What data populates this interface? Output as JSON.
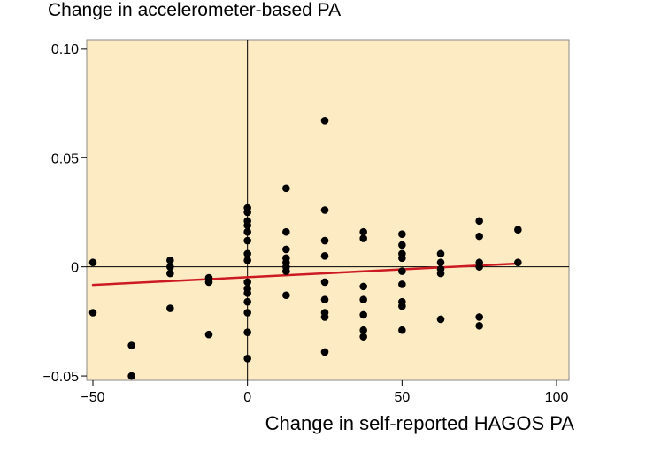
{
  "chart_data": {
    "type": "scatter",
    "title": "",
    "xlabel": "Change in self-reported HAGOS PA",
    "ylabel": "Change in accelerometer-based PA",
    "xlim": [
      -52,
      104
    ],
    "ylim": [
      -0.052,
      0.104
    ],
    "x_ticks": [
      -50,
      0,
      50,
      100
    ],
    "x_tick_labels": [
      "−50",
      "0",
      "50",
      "100"
    ],
    "y_ticks": [
      -0.05,
      0,
      0.05,
      0.1
    ],
    "y_tick_labels": [
      "−0.05",
      "0",
      "0.05",
      "0.10"
    ],
    "grid": false,
    "reference_lines": {
      "x": 0,
      "y": 0
    },
    "background_color": "#fdebc3",
    "point_color": "#000000",
    "fit_line": {
      "color": "#cc1a22",
      "x": [
        -50,
        87.5
      ],
      "y": [
        -0.0083,
        0.0015
      ]
    },
    "points": [
      {
        "x": -50,
        "y": 0.002
      },
      {
        "x": -50,
        "y": -0.021
      },
      {
        "x": -37.5,
        "y": -0.036
      },
      {
        "x": -37.5,
        "y": -0.05
      },
      {
        "x": -25,
        "y": 0.003
      },
      {
        "x": -25,
        "y": 0.0
      },
      {
        "x": -25,
        "y": -0.003
      },
      {
        "x": -25,
        "y": -0.019
      },
      {
        "x": -12.5,
        "y": -0.005
      },
      {
        "x": -12.5,
        "y": -0.007
      },
      {
        "x": -12.5,
        "y": -0.031
      },
      {
        "x": 0,
        "y": 0.027
      },
      {
        "x": 0,
        "y": 0.025
      },
      {
        "x": 0,
        "y": 0.021
      },
      {
        "x": 0,
        "y": 0.019
      },
      {
        "x": 0,
        "y": 0.016
      },
      {
        "x": 0,
        "y": 0.012
      },
      {
        "x": 0,
        "y": 0.006
      },
      {
        "x": 0,
        "y": 0.003
      },
      {
        "x": 0,
        "y": -0.007
      },
      {
        "x": 0,
        "y": -0.01
      },
      {
        "x": 0,
        "y": -0.012
      },
      {
        "x": 0,
        "y": -0.016
      },
      {
        "x": 0,
        "y": -0.021
      },
      {
        "x": 0,
        "y": -0.03
      },
      {
        "x": 0,
        "y": -0.042
      },
      {
        "x": 12.5,
        "y": 0.036
      },
      {
        "x": 12.5,
        "y": 0.016
      },
      {
        "x": 12.5,
        "y": 0.008
      },
      {
        "x": 12.5,
        "y": 0.004
      },
      {
        "x": 12.5,
        "y": 0.002
      },
      {
        "x": 12.5,
        "y": 0.0
      },
      {
        "x": 12.5,
        "y": -0.002
      },
      {
        "x": 12.5,
        "y": -0.013
      },
      {
        "x": 25,
        "y": 0.067
      },
      {
        "x": 25,
        "y": 0.026
      },
      {
        "x": 25,
        "y": 0.012
      },
      {
        "x": 25,
        "y": 0.005
      },
      {
        "x": 25,
        "y": -0.007
      },
      {
        "x": 25,
        "y": -0.015
      },
      {
        "x": 25,
        "y": -0.021
      },
      {
        "x": 25,
        "y": -0.023
      },
      {
        "x": 25,
        "y": -0.039
      },
      {
        "x": 37.5,
        "y": 0.016
      },
      {
        "x": 37.5,
        "y": 0.013
      },
      {
        "x": 37.5,
        "y": -0.009
      },
      {
        "x": 37.5,
        "y": -0.015
      },
      {
        "x": 37.5,
        "y": -0.022
      },
      {
        "x": 37.5,
        "y": -0.029
      },
      {
        "x": 37.5,
        "y": -0.032
      },
      {
        "x": 50,
        "y": 0.015
      },
      {
        "x": 50,
        "y": 0.01
      },
      {
        "x": 50,
        "y": 0.006
      },
      {
        "x": 50,
        "y": 0.004
      },
      {
        "x": 50,
        "y": -0.002
      },
      {
        "x": 50,
        "y": -0.008
      },
      {
        "x": 50,
        "y": -0.016
      },
      {
        "x": 50,
        "y": -0.018
      },
      {
        "x": 50,
        "y": -0.029
      },
      {
        "x": 62.5,
        "y": 0.006
      },
      {
        "x": 62.5,
        "y": 0.002
      },
      {
        "x": 62.5,
        "y": -0.001
      },
      {
        "x": 62.5,
        "y": -0.003
      },
      {
        "x": 62.5,
        "y": -0.024
      },
      {
        "x": 75,
        "y": 0.021
      },
      {
        "x": 75,
        "y": 0.014
      },
      {
        "x": 75,
        "y": 0.002
      },
      {
        "x": 75,
        "y": 0.0
      },
      {
        "x": 75,
        "y": -0.023
      },
      {
        "x": 75,
        "y": -0.027
      },
      {
        "x": 87.5,
        "y": 0.017
      },
      {
        "x": 87.5,
        "y": 0.002
      }
    ]
  }
}
